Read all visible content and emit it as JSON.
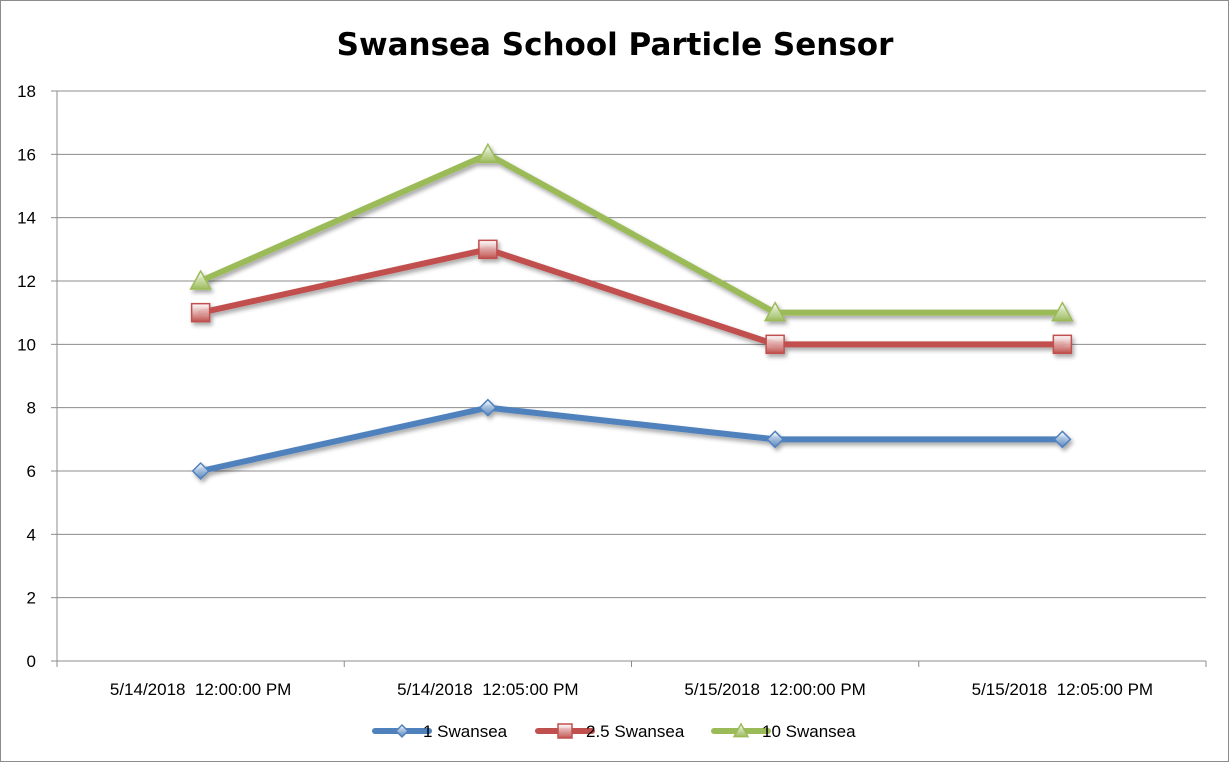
{
  "chart_data": {
    "type": "line",
    "title": "Swansea School Particle Sensor",
    "xlabel": "",
    "ylabel": "",
    "categories": [
      "5/14/2018  12:00:00 PM",
      "5/14/2018  12:05:00 PM",
      "5/15/2018  12:00:00 PM",
      "5/15/2018  12:05:00 PM"
    ],
    "ylim": [
      0,
      18
    ],
    "yticks": [
      0,
      2,
      4,
      6,
      8,
      10,
      12,
      14,
      16,
      18
    ],
    "grid": "horizontal",
    "legend": "bottom",
    "series": [
      {
        "name": "1 Swansea",
        "values": [
          6,
          8,
          7,
          7
        ],
        "color": "#4f81bd",
        "marker": "diamond"
      },
      {
        "name": "2.5 Swansea",
        "values": [
          11,
          13,
          10,
          10
        ],
        "color": "#c0504d",
        "marker": "square"
      },
      {
        "name": "10 Swansea",
        "values": [
          12,
          16,
          11,
          11
        ],
        "color": "#9bbb59",
        "marker": "triangle"
      }
    ]
  }
}
